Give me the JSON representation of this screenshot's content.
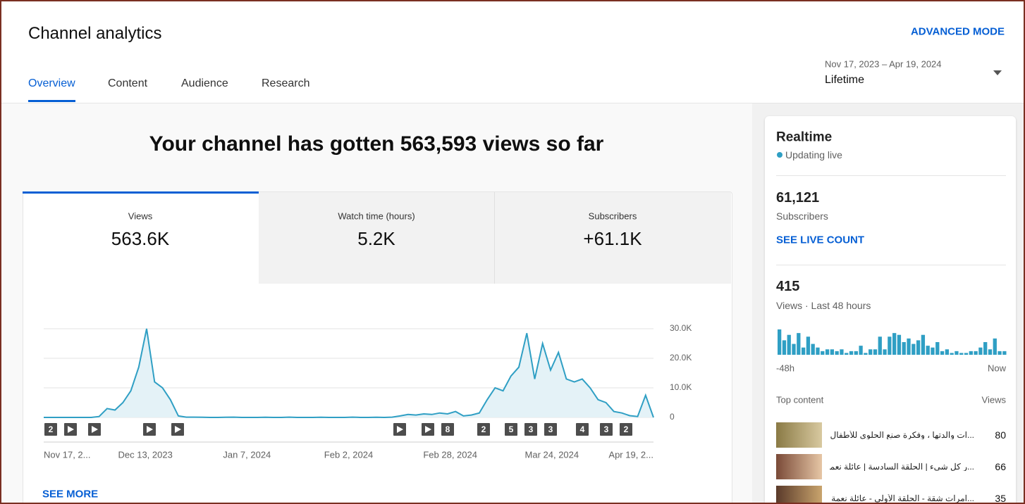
{
  "header": {
    "title": "Channel analytics",
    "advanced_mode": "ADVANCED MODE",
    "tabs": [
      "Overview",
      "Content",
      "Audience",
      "Research"
    ],
    "date_range": "Nov 17, 2023 – Apr 19, 2024",
    "period": "Lifetime"
  },
  "headline": "Your channel has gotten 563,593 views so far",
  "metrics": [
    {
      "label": "Views",
      "value": "563.6K"
    },
    {
      "label": "Watch time (hours)",
      "value": "5.2K"
    },
    {
      "label": "Subscribers",
      "value": "+61.1K"
    }
  ],
  "chart": {
    "type": "line",
    "color": "#2f9fc4",
    "values": [
      0,
      0,
      0,
      0,
      0,
      0,
      0,
      300,
      3000,
      2500,
      5000,
      9000,
      17000,
      30000,
      12000,
      10000,
      6000,
      500,
      100,
      100,
      50,
      0,
      0,
      50,
      100,
      0,
      0,
      0,
      50,
      0,
      0,
      100,
      0,
      0,
      0,
      50,
      0,
      0,
      0,
      100,
      0,
      0,
      50,
      0,
      100,
      500,
      1000,
      800,
      1200,
      1000,
      1500,
      1200,
      2000,
      500,
      800,
      1500,
      6000,
      10000,
      9000,
      14000,
      17000,
      28500,
      13000,
      25000,
      16000,
      22000,
      13000,
      12000,
      13000,
      10000,
      6000,
      5000,
      2000,
      1500,
      600,
      300,
      7500,
      0
    ],
    "ylim": [
      0,
      30000
    ],
    "yticks": [
      0,
      {
        "value": 10000,
        "label": "10.0K"
      },
      {
        "value": 20000,
        "label": "20.0K"
      },
      {
        "value": 30000,
        "label": "30.0K"
      }
    ],
    "xtick_labels": [
      "Nov 17, 2...",
      "Dec 13, 2023",
      "Jan 7, 2024",
      "Feb 2, 2024",
      "Feb 28, 2024",
      "Mar 24, 2024",
      "Apr 19, 2..."
    ],
    "markers": [
      "2",
      null,
      null,
      null,
      null,
      null,
      null,
      "8",
      "2",
      "5",
      "3",
      "3",
      "4",
      "3",
      "2"
    ],
    "grid": true
  },
  "see_more": "SEE MORE",
  "realtime": {
    "title": "Realtime",
    "status": "Updating live",
    "subscribers": "61,121",
    "subscribers_label": "Subscribers",
    "see_live": "SEE LIVE COUNT",
    "views": "415",
    "views_label": "Views · Last 48 hours",
    "chart": {
      "type": "bar",
      "color": "#2f9fc4",
      "values": [
        14,
        8,
        11,
        6,
        12,
        4,
        10,
        6,
        4,
        2,
        3,
        3,
        2,
        3,
        1,
        2,
        2,
        5,
        1,
        3,
        3,
        10,
        3,
        10,
        12,
        11,
        7,
        9,
        6,
        8,
        11,
        5,
        4,
        7,
        2,
        3,
        1,
        2,
        1,
        1,
        2,
        2,
        4,
        7,
        3,
        9,
        2,
        2
      ],
      "start_label": "-48h",
      "end_label": "Now"
    },
    "top_content": {
      "title": "Top content",
      "column": "Views",
      "items": [
        {
          "title": "...ات والدتها ، وفكرة صنع الحلوى للأطفال",
          "views": 80
        },
        {
          "title": "...ر كل شيء | الحلقة السادسة | عائلة نعمة",
          "views": 66
        },
        {
          "title": "...امرات شقة - الحلقة الأولى - عائلة نعمة",
          "views": 35
        }
      ]
    }
  }
}
